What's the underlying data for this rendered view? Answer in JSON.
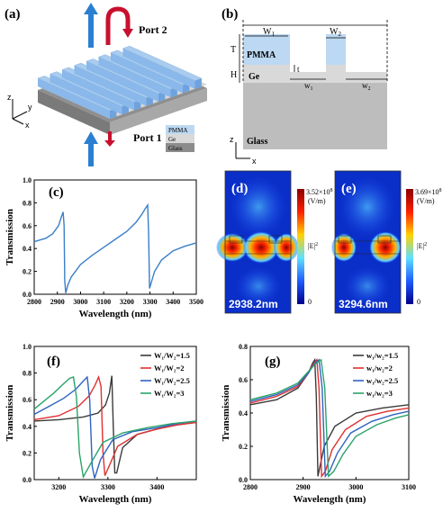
{
  "panel_labels": {
    "a": "(a)",
    "b": "(b)",
    "c": "(c)",
    "d": "(d)",
    "e": "(e)",
    "f": "(f)",
    "g": "(g)"
  },
  "panel_a": {
    "port2": "Port 2",
    "port1": "Port 1",
    "legend": [
      "PMMA",
      "Ge",
      "Glass"
    ],
    "legend_colors": [
      "#bcd8f2",
      "#d9d9d9",
      "#8c8c8c"
    ],
    "axes": {
      "z": "z",
      "y": "y",
      "x": "x"
    }
  },
  "panel_b": {
    "W1": "W",
    "W1_sub": "1",
    "W2": "W",
    "W2_sub": "2",
    "w1": "w",
    "w1_sub": "1",
    "w2": "w",
    "w2_sub": "2",
    "T": "T",
    "H": "H",
    "t": "t",
    "pmma": "PMMA",
    "ge": "Ge",
    "glass": "Glass",
    "z": "z",
    "x": "x"
  },
  "panel_d": {
    "max": "3.52×10",
    "exp": "8",
    "unit": "(V/m)",
    "zero": "0",
    "field": "|E|",
    "field_sup": "2",
    "wl": "2938.2nm"
  },
  "panel_e": {
    "max": "3.69×10",
    "exp": "8",
    "unit": "(V/m)",
    "zero": "0",
    "field": "|E|",
    "field_sup": "2",
    "wl": "3294.6nm"
  },
  "chart_data": [
    {
      "type": "line",
      "panel": "c",
      "xlabel": "Wavelength (nm)",
      "ylabel": "Transmission",
      "xlim": [
        2800,
        3500
      ],
      "ylim": [
        0,
        1.0
      ],
      "xticks": [
        2800,
        2900,
        3000,
        3100,
        3200,
        3300,
        3400,
        3500
      ],
      "yticks": [
        0.0,
        0.2,
        0.4,
        0.6,
        0.8,
        1.0
      ],
      "series": [
        {
          "color": "#3a7fc8",
          "x": [
            2800,
            2850,
            2880,
            2905,
            2918,
            2925,
            2929,
            2932,
            2936,
            2945,
            2960,
            3000,
            3050,
            3100,
            3150,
            3200,
            3240,
            3265,
            3280,
            3290,
            3294,
            3298,
            3305,
            3320,
            3350,
            3400,
            3450,
            3500
          ],
          "y": [
            0.46,
            0.49,
            0.53,
            0.6,
            0.68,
            0.72,
            0.6,
            0.12,
            0.01,
            0.08,
            0.15,
            0.26,
            0.34,
            0.41,
            0.48,
            0.55,
            0.63,
            0.7,
            0.75,
            0.78,
            0.55,
            0.05,
            0.1,
            0.2,
            0.3,
            0.38,
            0.42,
            0.45
          ]
        }
      ]
    },
    {
      "type": "line",
      "panel": "f",
      "xlabel": "Wavelength (nm)",
      "ylabel": "Transmission",
      "xlim": [
        3150,
        3480
      ],
      "ylim": [
        0,
        1.0
      ],
      "xticks": [
        3200,
        3300,
        3400
      ],
      "yticks": [
        0.0,
        0.2,
        0.4,
        0.6,
        0.8,
        1.0
      ],
      "series": [
        {
          "name": "W₁/W₂=1.5",
          "color": "#3b3b3b",
          "x": [
            3150,
            3200,
            3250,
            3280,
            3295,
            3303,
            3308,
            3311,
            3314,
            3318,
            3330,
            3360,
            3400,
            3440,
            3480
          ],
          "y": [
            0.44,
            0.45,
            0.47,
            0.5,
            0.56,
            0.65,
            0.78,
            0.4,
            0.05,
            0.05,
            0.24,
            0.34,
            0.38,
            0.41,
            0.43
          ]
        },
        {
          "name": "W₁/W₂=2",
          "color": "#e03030",
          "x": [
            3150,
            3200,
            3240,
            3262,
            3274,
            3281,
            3286,
            3290,
            3294,
            3300,
            3320,
            3360,
            3400,
            3440,
            3480
          ],
          "y": [
            0.45,
            0.48,
            0.55,
            0.63,
            0.71,
            0.77,
            0.7,
            0.2,
            0.03,
            0.08,
            0.25,
            0.34,
            0.38,
            0.41,
            0.43
          ]
        },
        {
          "name": "W₁/W₂=2.5",
          "color": "#2f63c0",
          "x": [
            3150,
            3180,
            3210,
            3235,
            3250,
            3258,
            3263,
            3268,
            3273,
            3285,
            3310,
            3350,
            3400,
            3440,
            3480
          ],
          "y": [
            0.49,
            0.55,
            0.61,
            0.68,
            0.74,
            0.77,
            0.6,
            0.1,
            0.01,
            0.15,
            0.3,
            0.36,
            0.39,
            0.42,
            0.44
          ]
        },
        {
          "name": "W₁/W₂=3",
          "color": "#2aa36a",
          "x": [
            3150,
            3170,
            3190,
            3210,
            3222,
            3230,
            3236,
            3242,
            3250,
            3265,
            3290,
            3330,
            3380,
            3430,
            3480
          ],
          "y": [
            0.53,
            0.59,
            0.65,
            0.72,
            0.76,
            0.77,
            0.62,
            0.2,
            0.02,
            0.12,
            0.28,
            0.35,
            0.39,
            0.42,
            0.44
          ]
        }
      ],
      "legend": "top-right"
    },
    {
      "type": "line",
      "panel": "g",
      "xlabel": "Wavelength (nm)",
      "ylabel": "Transmission",
      "xlim": [
        2800,
        3100
      ],
      "ylim": [
        0,
        0.8
      ],
      "xticks": [
        2800,
        2900,
        3000,
        3100
      ],
      "yticks": [
        0.0,
        0.2,
        0.4,
        0.6,
        0.8
      ],
      "series": [
        {
          "name": "w₁/w₂=1.5",
          "color": "#3b3b3b",
          "x": [
            2800,
            2850,
            2890,
            2910,
            2918,
            2922,
            2925,
            2928,
            2932,
            2940,
            2960,
            3000,
            3050,
            3100
          ],
          "y": [
            0.45,
            0.48,
            0.55,
            0.64,
            0.7,
            0.72,
            0.5,
            0.02,
            0.08,
            0.2,
            0.32,
            0.4,
            0.43,
            0.45
          ]
        },
        {
          "name": "w₁/w₂=2",
          "color": "#e03030",
          "x": [
            2800,
            2850,
            2890,
            2910,
            2920,
            2926,
            2930,
            2935,
            2942,
            2955,
            2980,
            3020,
            3060,
            3100
          ],
          "y": [
            0.46,
            0.5,
            0.56,
            0.64,
            0.7,
            0.72,
            0.55,
            0.02,
            0.05,
            0.18,
            0.3,
            0.38,
            0.41,
            0.43
          ]
        },
        {
          "name": "w₁/w₂=2.5",
          "color": "#2f63c0",
          "x": [
            2800,
            2850,
            2890,
            2910,
            2922,
            2930,
            2936,
            2942,
            2950,
            2965,
            2990,
            3030,
            3070,
            3100
          ],
          "y": [
            0.47,
            0.51,
            0.57,
            0.64,
            0.7,
            0.72,
            0.55,
            0.02,
            0.05,
            0.16,
            0.28,
            0.35,
            0.39,
            0.41
          ]
        },
        {
          "name": "w₁/w₂=3",
          "color": "#2aa36a",
          "x": [
            2800,
            2850,
            2890,
            2910,
            2925,
            2934,
            2941,
            2948,
            2958,
            2975,
            3000,
            3040,
            3075,
            3100
          ],
          "y": [
            0.48,
            0.52,
            0.58,
            0.65,
            0.7,
            0.72,
            0.55,
            0.02,
            0.05,
            0.15,
            0.26,
            0.33,
            0.37,
            0.39
          ]
        }
      ],
      "legend": "top-right"
    }
  ]
}
